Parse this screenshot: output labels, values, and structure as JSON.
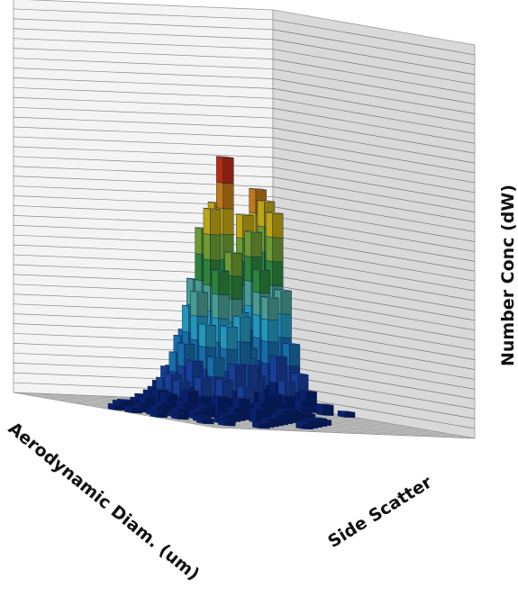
{
  "chart_data": {
    "type": "bar3d",
    "title": "",
    "xlabel": "Aerodynamic Diam. (um)",
    "ylabel": "Side Scatter",
    "zlabel": "Number Conc (dW)",
    "x_bins": 20,
    "y_bins": 24,
    "zlim": [
      0,
      1
    ],
    "grid": true,
    "colormap": [
      "#0b2a8c",
      "#1f4fbf",
      "#1f8ad6",
      "#2ec0ee",
      "#5cc7b8",
      "#3aa84a",
      "#8cc63f",
      "#f2d21a",
      "#f39a1e",
      "#e8381b"
    ],
    "bars": [
      {
        "x": 0,
        "y": 4,
        "z": 0.03
      },
      {
        "x": 0,
        "y": 9,
        "z": 0.02
      },
      {
        "x": 1,
        "y": 0,
        "z": 0.82
      },
      {
        "x": 1,
        "y": 1,
        "z": 0.78
      },
      {
        "x": 1,
        "y": 2,
        "z": 0.74
      },
      {
        "x": 1,
        "y": 3,
        "z": 0.45
      },
      {
        "x": 1,
        "y": 4,
        "z": 0.25
      },
      {
        "x": 1,
        "y": 5,
        "z": 0.14
      },
      {
        "x": 1,
        "y": 6,
        "z": 0.08
      },
      {
        "x": 1,
        "y": 8,
        "z": 0.04
      },
      {
        "x": 2,
        "y": 0,
        "z": 0.72
      },
      {
        "x": 2,
        "y": 1,
        "z": 0.66
      },
      {
        "x": 2,
        "y": 2,
        "z": 0.52
      },
      {
        "x": 2,
        "y": 3,
        "z": 0.42
      },
      {
        "x": 2,
        "y": 4,
        "z": 0.2
      },
      {
        "x": 2,
        "y": 5,
        "z": 0.11
      },
      {
        "x": 2,
        "y": 7,
        "z": 0.05
      },
      {
        "x": 3,
        "y": 0,
        "z": 0.4
      },
      {
        "x": 3,
        "y": 1,
        "z": 0.35
      },
      {
        "x": 3,
        "y": 2,
        "z": 0.22
      },
      {
        "x": 3,
        "y": 3,
        "z": 0.12
      },
      {
        "x": 3,
        "y": 5,
        "z": 0.06
      },
      {
        "x": 4,
        "y": 1,
        "z": 0.07
      },
      {
        "x": 4,
        "y": 3,
        "z": 0.05
      },
      {
        "x": 4,
        "y": 6,
        "z": 0.03
      },
      {
        "x": 5,
        "y": 2,
        "z": 0.04
      },
      {
        "x": 5,
        "y": 8,
        "z": 0.03
      },
      {
        "x": 5,
        "y": 12,
        "z": 0.02
      },
      {
        "x": 6,
        "y": 4,
        "z": 0.04
      },
      {
        "x": 6,
        "y": 7,
        "z": 0.05
      },
      {
        "x": 6,
        "y": 10,
        "z": 0.03
      },
      {
        "x": 7,
        "y": 6,
        "z": 0.06
      },
      {
        "x": 7,
        "y": 8,
        "z": 0.07
      },
      {
        "x": 7,
        "y": 11,
        "z": 0.04
      },
      {
        "x": 7,
        "y": 14,
        "z": 0.03
      },
      {
        "x": 7,
        "y": 17,
        "z": 0.02
      },
      {
        "x": 8,
        "y": 7,
        "z": 0.14
      },
      {
        "x": 8,
        "y": 8,
        "z": 0.22
      },
      {
        "x": 8,
        "y": 9,
        "z": 0.3
      },
      {
        "x": 8,
        "y": 10,
        "z": 0.18
      },
      {
        "x": 8,
        "y": 11,
        "z": 0.1
      },
      {
        "x": 8,
        "y": 13,
        "z": 0.06
      },
      {
        "x": 8,
        "y": 15,
        "z": 0.04
      },
      {
        "x": 8,
        "y": 18,
        "z": 0.03
      },
      {
        "x": 9,
        "y": 6,
        "z": 0.12
      },
      {
        "x": 9,
        "y": 7,
        "z": 0.3
      },
      {
        "x": 9,
        "y": 8,
        "z": 0.45
      },
      {
        "x": 9,
        "y": 9,
        "z": 0.52
      },
      {
        "x": 9,
        "y": 10,
        "z": 0.36
      },
      {
        "x": 9,
        "y": 11,
        "z": 0.22
      },
      {
        "x": 9,
        "y": 12,
        "z": 0.14
      },
      {
        "x": 9,
        "y": 14,
        "z": 0.08
      },
      {
        "x": 9,
        "y": 16,
        "z": 0.05
      },
      {
        "x": 9,
        "y": 19,
        "z": 0.03
      },
      {
        "x": 10,
        "y": 6,
        "z": 0.18
      },
      {
        "x": 10,
        "y": 7,
        "z": 0.35
      },
      {
        "x": 10,
        "y": 8,
        "z": 0.56
      },
      {
        "x": 10,
        "y": 9,
        "z": 0.8
      },
      {
        "x": 10,
        "y": 10,
        "z": 0.98
      },
      {
        "x": 10,
        "y": 11,
        "z": 0.62
      },
      {
        "x": 10,
        "y": 12,
        "z": 0.38
      },
      {
        "x": 10,
        "y": 13,
        "z": 0.2
      },
      {
        "x": 10,
        "y": 15,
        "z": 0.1
      },
      {
        "x": 10,
        "y": 17,
        "z": 0.05
      },
      {
        "x": 10,
        "y": 20,
        "z": 0.03
      },
      {
        "x": 11,
        "y": 6,
        "z": 0.14
      },
      {
        "x": 11,
        "y": 7,
        "z": 0.3
      },
      {
        "x": 11,
        "y": 8,
        "z": 0.5
      },
      {
        "x": 11,
        "y": 9,
        "z": 0.7
      },
      {
        "x": 11,
        "y": 10,
        "z": 0.78
      },
      {
        "x": 11,
        "y": 11,
        "z": 0.55
      },
      {
        "x": 11,
        "y": 12,
        "z": 0.34
      },
      {
        "x": 11,
        "y": 13,
        "z": 0.2
      },
      {
        "x": 11,
        "y": 14,
        "z": 0.12
      },
      {
        "x": 11,
        "y": 16,
        "z": 0.07
      },
      {
        "x": 11,
        "y": 18,
        "z": 0.04
      },
      {
        "x": 11,
        "y": 21,
        "z": 0.02
      },
      {
        "x": 12,
        "y": 7,
        "z": 0.16
      },
      {
        "x": 12,
        "y": 8,
        "z": 0.28
      },
      {
        "x": 12,
        "y": 9,
        "z": 0.4
      },
      {
        "x": 12,
        "y": 10,
        "z": 0.46
      },
      {
        "x": 12,
        "y": 11,
        "z": 0.34
      },
      {
        "x": 12,
        "y": 12,
        "z": 0.22
      },
      {
        "x": 12,
        "y": 13,
        "z": 0.14
      },
      {
        "x": 12,
        "y": 15,
        "z": 0.08
      },
      {
        "x": 12,
        "y": 17,
        "z": 0.05
      },
      {
        "x": 12,
        "y": 19,
        "z": 0.03
      },
      {
        "x": 13,
        "y": 7,
        "z": 0.1
      },
      {
        "x": 13,
        "y": 8,
        "z": 0.16
      },
      {
        "x": 13,
        "y": 9,
        "z": 0.22
      },
      {
        "x": 13,
        "y": 10,
        "z": 0.26
      },
      {
        "x": 13,
        "y": 11,
        "z": 0.2
      },
      {
        "x": 13,
        "y": 12,
        "z": 0.14
      },
      {
        "x": 13,
        "y": 14,
        "z": 0.08
      },
      {
        "x": 13,
        "y": 16,
        "z": 0.05
      },
      {
        "x": 13,
        "y": 20,
        "z": 0.03
      },
      {
        "x": 14,
        "y": 8,
        "z": 0.08
      },
      {
        "x": 14,
        "y": 9,
        "z": 0.12
      },
      {
        "x": 14,
        "y": 10,
        "z": 0.14
      },
      {
        "x": 14,
        "y": 11,
        "z": 0.12
      },
      {
        "x": 14,
        "y": 12,
        "z": 0.09
      },
      {
        "x": 14,
        "y": 14,
        "z": 0.05
      },
      {
        "x": 14,
        "y": 17,
        "z": 0.03
      },
      {
        "x": 14,
        "y": 21,
        "z": 0.02
      },
      {
        "x": 15,
        "y": 8,
        "z": 0.05
      },
      {
        "x": 15,
        "y": 9,
        "z": 0.07
      },
      {
        "x": 15,
        "y": 10,
        "z": 0.08
      },
      {
        "x": 15,
        "y": 11,
        "z": 0.07
      },
      {
        "x": 15,
        "y": 13,
        "z": 0.05
      },
      {
        "x": 15,
        "y": 15,
        "z": 0.04
      },
      {
        "x": 15,
        "y": 18,
        "z": 0.03
      },
      {
        "x": 15,
        "y": 22,
        "z": 0.02
      },
      {
        "x": 16,
        "y": 9,
        "z": 0.04
      },
      {
        "x": 16,
        "y": 10,
        "z": 0.05
      },
      {
        "x": 16,
        "y": 12,
        "z": 0.04
      },
      {
        "x": 16,
        "y": 14,
        "z": 0.03
      },
      {
        "x": 16,
        "y": 16,
        "z": 0.03
      },
      {
        "x": 16,
        "y": 19,
        "z": 0.02
      },
      {
        "x": 17,
        "y": 9,
        "z": 0.03
      },
      {
        "x": 17,
        "y": 11,
        "z": 0.03
      },
      {
        "x": 17,
        "y": 13,
        "z": 0.03
      },
      {
        "x": 17,
        "y": 15,
        "z": 0.02
      },
      {
        "x": 17,
        "y": 18,
        "z": 0.02
      },
      {
        "x": 17,
        "y": 21,
        "z": 0.02
      },
      {
        "x": 18,
        "y": 10,
        "z": 0.03
      },
      {
        "x": 18,
        "y": 12,
        "z": 0.02
      },
      {
        "x": 18,
        "y": 14,
        "z": 0.02
      },
      {
        "x": 18,
        "y": 17,
        "z": 0.02
      },
      {
        "x": 18,
        "y": 20,
        "z": 0.02
      },
      {
        "x": 19,
        "y": 11,
        "z": 0.02
      },
      {
        "x": 19,
        "y": 13,
        "z": 0.02
      },
      {
        "x": 19,
        "y": 16,
        "z": 0.02
      }
    ]
  }
}
